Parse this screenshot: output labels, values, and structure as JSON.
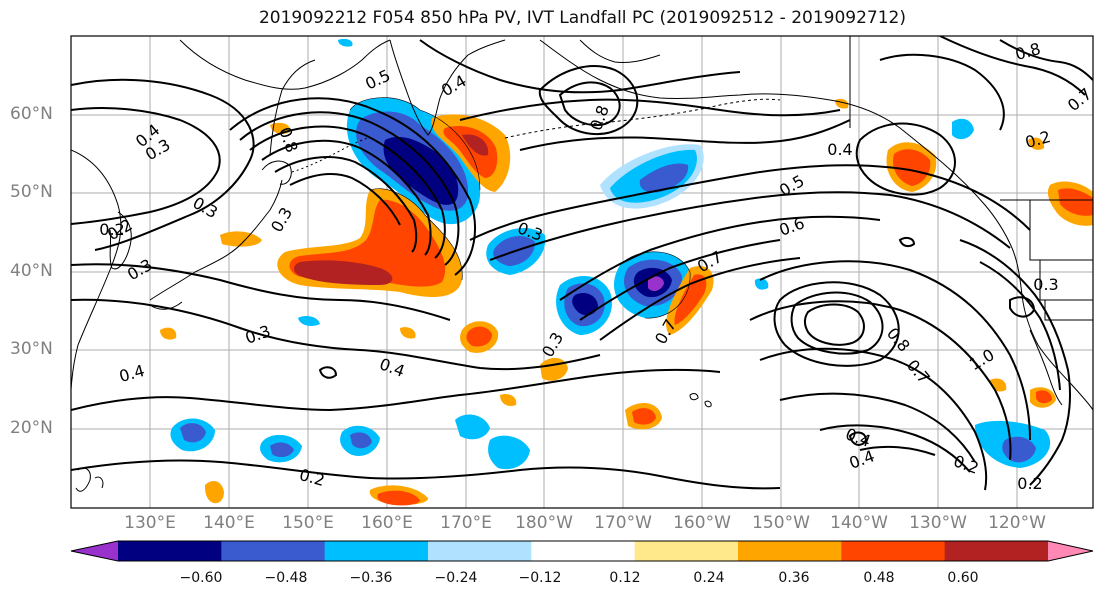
{
  "title": "2019092212 F054 850 hPa PV, IVT Landfall PC (2019092512 - 2019092712)",
  "lat_labels": [
    "60°N",
    "50°N",
    "40°N",
    "30°N",
    "20°N"
  ],
  "lon_labels": [
    "130°E",
    "140°E",
    "150°E",
    "160°E",
    "170°E",
    "180°W",
    "170°W",
    "160°W",
    "150°W",
    "140°W",
    "130°W",
    "120°W"
  ],
  "colorbar": {
    "ticks": [
      "−0.60",
      "−0.48",
      "−0.36",
      "−0.24",
      "−0.12",
      "0.12",
      "0.24",
      "0.36",
      "0.48",
      "0.60"
    ],
    "colors": [
      "#9932cc",
      "#000080",
      "#3a5bcf",
      "#00bfff",
      "#b0e2ff",
      "#ffffff",
      "#ffe98a",
      "#ffa500",
      "#ff4500",
      "#b22222",
      "#ff88b4"
    ]
  },
  "contour_labels": [
    {
      "text": "0.5"
    },
    {
      "text": "0.4"
    },
    {
      "text": "0.4"
    },
    {
      "text": "0.3"
    },
    {
      "text": "0.2"
    },
    {
      "text": "0.3"
    },
    {
      "text": "0.3"
    },
    {
      "text": "0.8"
    },
    {
      "text": "0.8"
    },
    {
      "text": "0.3"
    },
    {
      "text": "0.3"
    },
    {
      "text": "0.4"
    },
    {
      "text": "0.6"
    },
    {
      "text": "0.7"
    },
    {
      "text": "0.7"
    },
    {
      "text": "0.5"
    },
    {
      "text": "0.3"
    },
    {
      "text": "0.3"
    },
    {
      "text": "0.4"
    },
    {
      "text": "0.2"
    },
    {
      "text": "0.2"
    },
    {
      "text": "0.4"
    },
    {
      "text": "0.4"
    },
    {
      "text": "0.8"
    },
    {
      "text": "0.7"
    },
    {
      "text": "1.0"
    },
    {
      "text": "0.3"
    },
    {
      "text": "0.2"
    },
    {
      "text": "0.2"
    },
    {
      "text": "0.4"
    },
    {
      "text": "0.2"
    },
    {
      "text": "0.8"
    },
    {
      "text": "0.7"
    }
  ]
}
